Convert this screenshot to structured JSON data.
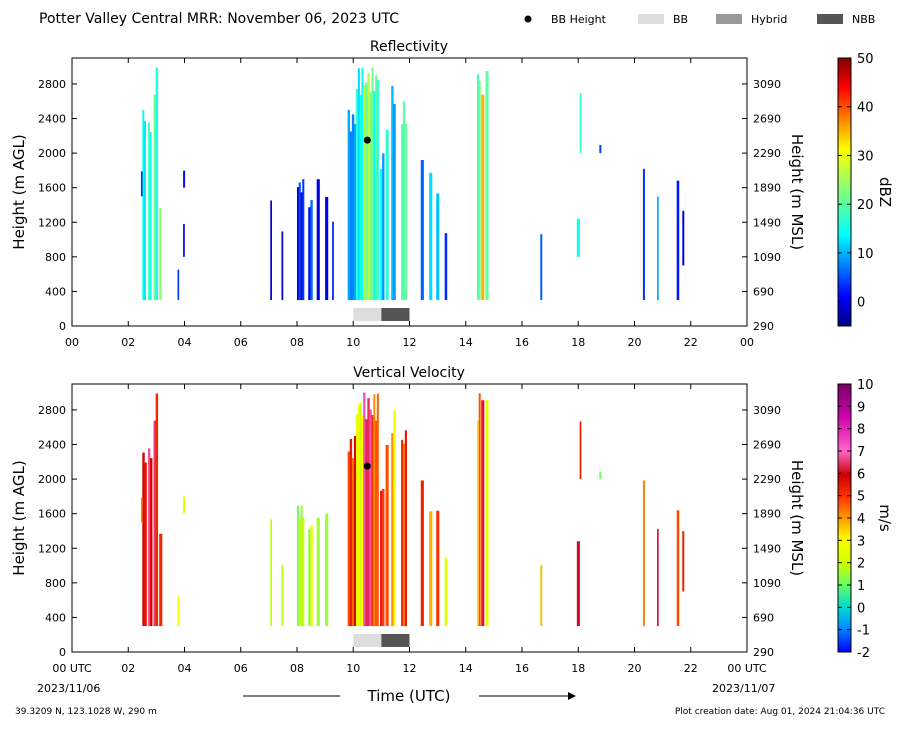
{
  "header": {
    "title": "Potter Valley Central MRR:  November 06, 2023 UTC",
    "legend": [
      {
        "label": "BB Height",
        "kind": "dot",
        "color": "#000000"
      },
      {
        "label": "BB",
        "kind": "box",
        "color": "#dddddd"
      },
      {
        "label": "Hybrid",
        "kind": "box",
        "color": "#999999"
      },
      {
        "label": "NBB",
        "kind": "box",
        "color": "#555555"
      }
    ]
  },
  "footer": {
    "location": "39.3209 N, 123.1028 W, 290 m",
    "created": "Plot creation date: Aug 01, 2024 21:04:36 UTC",
    "xlabel": "Time (UTC)",
    "start_date": "2023/11/06",
    "end_date": "2023/11/07"
  },
  "chart_data": [
    {
      "type": "heatmap",
      "title": "Reflectivity",
      "ylabel": "Height (m AGL)",
      "y2label": "Height (m MSL)",
      "x_ticks": [
        "00",
        "02",
        "04",
        "06",
        "08",
        "10",
        "12",
        "14",
        "16",
        "18",
        "20",
        "22",
        "00"
      ],
      "xlim": [
        0,
        24
      ],
      "ylim": [
        0,
        3100
      ],
      "y_ticks": [
        0,
        400,
        800,
        1200,
        1600,
        2000,
        2400,
        2800
      ],
      "y2_ticks": [
        290,
        690,
        1090,
        1490,
        1890,
        2290,
        2690,
        3090
      ],
      "colorbar": {
        "label": "dBZ",
        "min": -5,
        "max": 50,
        "ticks": [
          0,
          10,
          20,
          30,
          40,
          50
        ],
        "colormap": "jet"
      },
      "bb_height": [
        {
          "x": 10.5,
          "y": 2150
        }
      ],
      "bb_segments": [
        {
          "start": 10.0,
          "end": 11.0,
          "type": "BB"
        },
        {
          "start": 11.0,
          "end": 12.0,
          "type": "NBB"
        }
      ],
      "echoes": [
        {
          "x": 2.5,
          "w": 0.12,
          "y0": 300,
          "y1": 2600,
          "v": 13
        },
        {
          "x": 2.7,
          "w": 0.12,
          "y0": 300,
          "y1": 2400,
          "v": 16
        },
        {
          "x": 2.9,
          "w": 0.15,
          "y0": 300,
          "y1": 3000,
          "v": 18
        },
        {
          "x": 3.1,
          "w": 0.08,
          "y0": 300,
          "y1": 1400,
          "v": 20
        },
        {
          "x": 2.45,
          "w": 0.05,
          "y0": 1500,
          "y1": 1800,
          "v": 1
        },
        {
          "x": 3.75,
          "w": 0.05,
          "y0": 300,
          "y1": 700,
          "v": 2
        },
        {
          "x": 3.95,
          "w": 0.06,
          "y0": 1600,
          "y1": 1800,
          "v": 1
        },
        {
          "x": 3.95,
          "w": 0.05,
          "y0": 800,
          "y1": 1200,
          "v": 2
        },
        {
          "x": 7.05,
          "w": 0.05,
          "y0": 300,
          "y1": 1600,
          "v": 1
        },
        {
          "x": 7.45,
          "w": 0.05,
          "y0": 300,
          "y1": 1100,
          "v": 1
        },
        {
          "x": 8.0,
          "w": 0.25,
          "y0": 300,
          "y1": 1700,
          "v": 2
        },
        {
          "x": 8.4,
          "w": 0.15,
          "y0": 300,
          "y1": 1500,
          "v": 3
        },
        {
          "x": 8.7,
          "w": 0.1,
          "y0": 300,
          "y1": 1700,
          "v": 2
        },
        {
          "x": 9.0,
          "w": 0.1,
          "y0": 300,
          "y1": 1600,
          "v": 1
        },
        {
          "x": 9.25,
          "w": 0.05,
          "y0": 300,
          "y1": 1300,
          "v": 2
        },
        {
          "x": 9.8,
          "w": 0.3,
          "y0": 300,
          "y1": 2500,
          "v": 8
        },
        {
          "x": 10.1,
          "w": 0.25,
          "y0": 300,
          "y1": 3000,
          "v": 14
        },
        {
          "x": 10.35,
          "w": 0.3,
          "y0": 300,
          "y1": 3000,
          "v": 24
        },
        {
          "x": 10.65,
          "w": 0.25,
          "y0": 300,
          "y1": 3000,
          "v": 18
        },
        {
          "x": 10.95,
          "w": 0.15,
          "y0": 300,
          "y1": 2000,
          "v": 12
        },
        {
          "x": 11.15,
          "w": 0.1,
          "y0": 300,
          "y1": 2400,
          "v": 15
        },
        {
          "x": 11.35,
          "w": 0.15,
          "y0": 300,
          "y1": 2800,
          "v": 10
        },
        {
          "x": 11.7,
          "w": 0.2,
          "y0": 300,
          "y1": 2600,
          "v": 20
        },
        {
          "x": 12.4,
          "w": 0.1,
          "y0": 300,
          "y1": 2000,
          "v": 8
        },
        {
          "x": 12.7,
          "w": 0.1,
          "y0": 300,
          "y1": 1800,
          "v": 15
        },
        {
          "x": 12.95,
          "w": 0.1,
          "y0": 300,
          "y1": 1700,
          "v": 14
        },
        {
          "x": 13.25,
          "w": 0.08,
          "y0": 300,
          "y1": 1100,
          "v": 6
        },
        {
          "x": 14.4,
          "w": 0.12,
          "y0": 300,
          "y1": 3000,
          "v": 20
        },
        {
          "x": 14.55,
          "w": 0.1,
          "y0": 300,
          "y1": 3000,
          "v": 36
        },
        {
          "x": 14.7,
          "w": 0.1,
          "y0": 300,
          "y1": 3000,
          "v": 20
        },
        {
          "x": 16.65,
          "w": 0.06,
          "y0": 300,
          "y1": 1100,
          "v": 4
        },
        {
          "x": 17.95,
          "w": 0.1,
          "y0": 800,
          "y1": 1300,
          "v": 12
        },
        {
          "x": 18.05,
          "w": 0.05,
          "y0": 2000,
          "y1": 2700,
          "v": 14
        },
        {
          "x": 18.75,
          "w": 0.06,
          "y0": 2000,
          "y1": 2100,
          "v": 1
        },
        {
          "x": 20.3,
          "w": 0.06,
          "y0": 300,
          "y1": 2000,
          "v": 1
        },
        {
          "x": 20.8,
          "w": 0.05,
          "y0": 300,
          "y1": 1500,
          "v": 8
        },
        {
          "x": 21.5,
          "w": 0.08,
          "y0": 300,
          "y1": 1800,
          "v": 2
        },
        {
          "x": 21.7,
          "w": 0.06,
          "y0": 700,
          "y1": 1400,
          "v": 1
        }
      ]
    },
    {
      "type": "heatmap",
      "title": "Vertical Velocity",
      "ylabel": "Height (m AGL)",
      "y2label": "Height (m MSL)",
      "x_ticks": [
        "00 UTC",
        "02",
        "04",
        "06",
        "08",
        "10",
        "12",
        "14",
        "16",
        "18",
        "20",
        "22",
        "00 UTC"
      ],
      "xlim": [
        0,
        24
      ],
      "ylim": [
        0,
        3100
      ],
      "y_ticks": [
        0,
        400,
        800,
        1200,
        1600,
        2000,
        2400,
        2800
      ],
      "y2_ticks": [
        290,
        690,
        1090,
        1490,
        1890,
        2290,
        2690,
        3090
      ],
      "colorbar": {
        "label": "m/s",
        "min": -2,
        "max": 10,
        "ticks": [
          -2,
          -1,
          0,
          1,
          2,
          3,
          4,
          5,
          6,
          7,
          8,
          9,
          10
        ],
        "colormap": "velocity"
      },
      "bb_height": [
        {
          "x": 10.5,
          "y": 2150
        }
      ],
      "bb_segments": [
        {
          "start": 10.0,
          "end": 11.0,
          "type": "BB"
        },
        {
          "start": 11.0,
          "end": 12.0,
          "type": "NBB"
        }
      ],
      "echoes": [
        {
          "x": 2.5,
          "w": 0.15,
          "y0": 300,
          "y1": 2400,
          "v": 5.5
        },
        {
          "x": 2.7,
          "w": 0.15,
          "y0": 300,
          "y1": 2400,
          "v": 6.2
        },
        {
          "x": 2.9,
          "w": 0.15,
          "y0": 300,
          "y1": 3000,
          "v": 5.8
        },
        {
          "x": 3.1,
          "w": 0.1,
          "y0": 300,
          "y1": 1400,
          "v": 4.5
        },
        {
          "x": 2.45,
          "w": 0.05,
          "y0": 1500,
          "y1": 1800,
          "v": 3.5
        },
        {
          "x": 3.75,
          "w": 0.05,
          "y0": 300,
          "y1": 700,
          "v": 2.5
        },
        {
          "x": 3.95,
          "w": 0.06,
          "y0": 1600,
          "y1": 1800,
          "v": 2.2
        },
        {
          "x": 7.05,
          "w": 0.05,
          "y0": 300,
          "y1": 1600,
          "v": 2.0
        },
        {
          "x": 7.45,
          "w": 0.05,
          "y0": 300,
          "y1": 1100,
          "v": 2.2
        },
        {
          "x": 8.0,
          "w": 0.25,
          "y0": 300,
          "y1": 1700,
          "v": 1.8
        },
        {
          "x": 8.4,
          "w": 0.15,
          "y0": 300,
          "y1": 1500,
          "v": 2.0
        },
        {
          "x": 8.7,
          "w": 0.1,
          "y0": 300,
          "y1": 1700,
          "v": 2.2
        },
        {
          "x": 9.0,
          "w": 0.1,
          "y0": 300,
          "y1": 1600,
          "v": 2.0
        },
        {
          "x": 9.8,
          "w": 0.3,
          "y0": 300,
          "y1": 2500,
          "v": 5.0
        },
        {
          "x": 10.1,
          "w": 0.25,
          "y0": 300,
          "y1": 3000,
          "v": 2.5
        },
        {
          "x": 10.35,
          "w": 0.3,
          "y0": 300,
          "y1": 3000,
          "v": 6.5
        },
        {
          "x": 10.65,
          "w": 0.25,
          "y0": 300,
          "y1": 3000,
          "v": 4.5
        },
        {
          "x": 10.95,
          "w": 0.15,
          "y0": 300,
          "y1": 2000,
          "v": 5.5
        },
        {
          "x": 11.15,
          "w": 0.1,
          "y0": 300,
          "y1": 2400,
          "v": 4.0
        },
        {
          "x": 11.35,
          "w": 0.15,
          "y0": 300,
          "y1": 2800,
          "v": 3.5
        },
        {
          "x": 11.7,
          "w": 0.2,
          "y0": 300,
          "y1": 2600,
          "v": 4.8
        },
        {
          "x": 12.4,
          "w": 0.1,
          "y0": 300,
          "y1": 2000,
          "v": 5.2
        },
        {
          "x": 12.7,
          "w": 0.1,
          "y0": 300,
          "y1": 1800,
          "v": 4.0
        },
        {
          "x": 12.95,
          "w": 0.1,
          "y0": 300,
          "y1": 1700,
          "v": 5.5
        },
        {
          "x": 13.25,
          "w": 0.08,
          "y0": 300,
          "y1": 1100,
          "v": 3.0
        },
        {
          "x": 14.4,
          "w": 0.12,
          "y0": 300,
          "y1": 3000,
          "v": 4.0
        },
        {
          "x": 14.55,
          "w": 0.1,
          "y0": 300,
          "y1": 3000,
          "v": 6.8
        },
        {
          "x": 14.7,
          "w": 0.1,
          "y0": 300,
          "y1": 3000,
          "v": 3.0
        },
        {
          "x": 16.65,
          "w": 0.06,
          "y0": 300,
          "y1": 1100,
          "v": 3.8
        },
        {
          "x": 17.95,
          "w": 0.1,
          "y0": 300,
          "y1": 1300,
          "v": 6.0
        },
        {
          "x": 18.05,
          "w": 0.05,
          "y0": 2000,
          "y1": 2700,
          "v": 5.0
        },
        {
          "x": 18.75,
          "w": 0.06,
          "y0": 2000,
          "y1": 2100,
          "v": 0.5
        },
        {
          "x": 20.3,
          "w": 0.06,
          "y0": 300,
          "y1": 2000,
          "v": 3.5
        },
        {
          "x": 20.8,
          "w": 0.05,
          "y0": 300,
          "y1": 1500,
          "v": 5.5
        },
        {
          "x": 21.5,
          "w": 0.08,
          "y0": 300,
          "y1": 1800,
          "v": 4.2
        },
        {
          "x": 21.7,
          "w": 0.06,
          "y0": 700,
          "y1": 1400,
          "v": 5.0
        }
      ]
    }
  ]
}
